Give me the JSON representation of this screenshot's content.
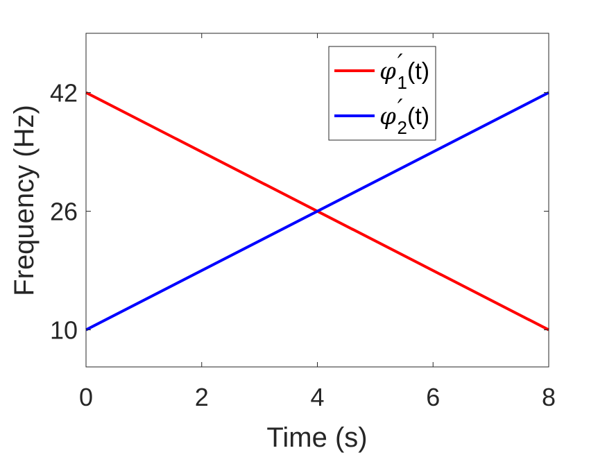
{
  "chart_data": {
    "type": "line",
    "xlabel": "Time (s)",
    "ylabel": "Frequency (Hz)",
    "xlim": [
      0,
      8
    ],
    "ylim": [
      5,
      50
    ],
    "xticks": [
      0,
      2,
      4,
      6,
      8
    ],
    "yticks": [
      10,
      26,
      42
    ],
    "grid": false,
    "legend_position": "top-right",
    "series": [
      {
        "name": "φ′1(t)",
        "symbol": "φ",
        "prime": "′",
        "subscript": "1",
        "arg": "(t)",
        "color": "#ff0000",
        "x": [
          0,
          8
        ],
        "y": [
          42,
          10
        ]
      },
      {
        "name": "φ′2(t)",
        "symbol": "φ",
        "prime": "′",
        "subscript": "2",
        "arg": "(t)",
        "color": "#0000ff",
        "x": [
          0,
          8
        ],
        "y": [
          10,
          42
        ]
      }
    ]
  }
}
